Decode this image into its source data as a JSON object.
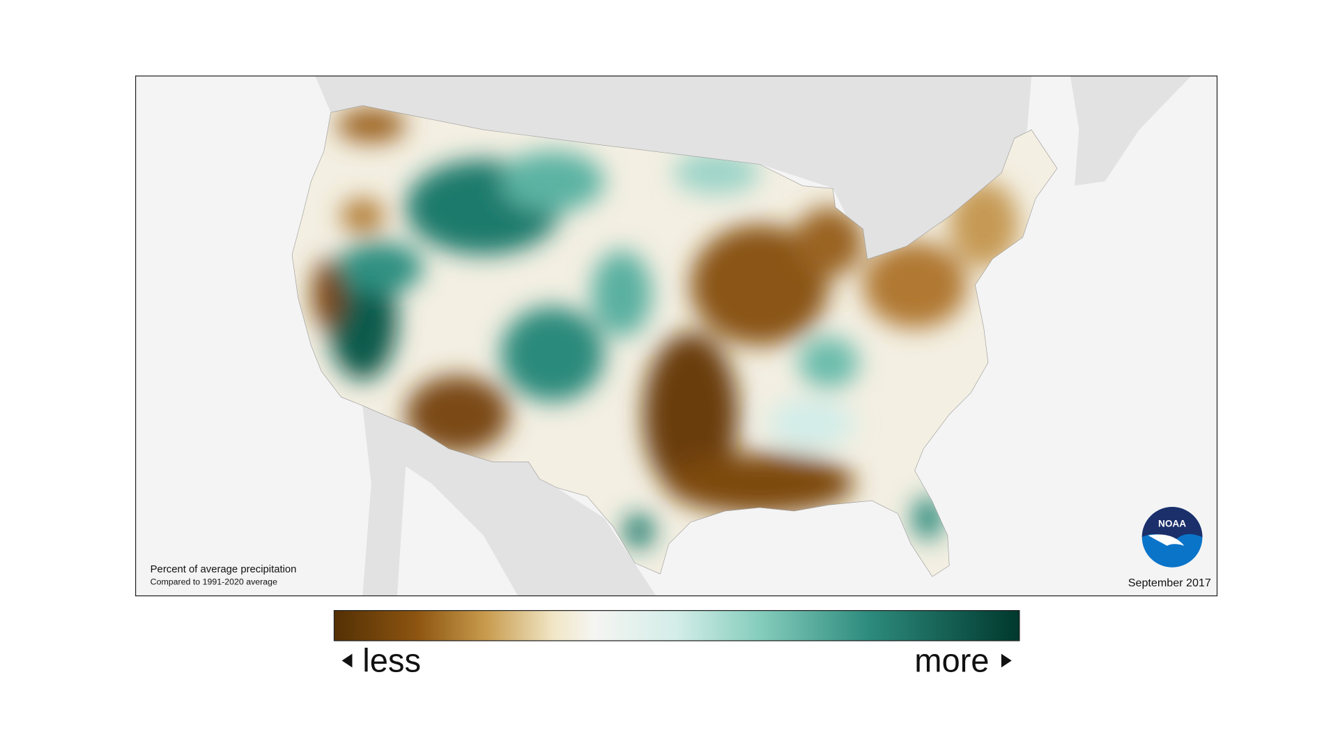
{
  "map": {
    "caption": "Percent of average precipitation",
    "subcaption": "Compared to 1991-2020 average",
    "date": "September 2017",
    "logo": "NOAA"
  },
  "legend": {
    "less": "less",
    "more": "more"
  }
}
